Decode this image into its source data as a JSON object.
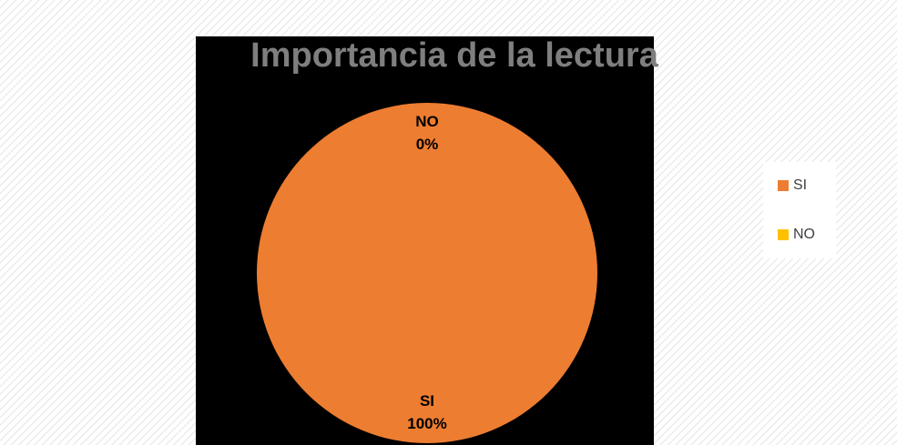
{
  "chart_data": {
    "type": "pie",
    "title": "Importancia de la lectura",
    "categories": [
      "SI",
      "NO"
    ],
    "values": [
      100,
      0
    ],
    "value_labels": [
      "100%",
      "0%"
    ],
    "colors": [
      "#ED7D31",
      "#FFC000"
    ],
    "legend": "right"
  }
}
